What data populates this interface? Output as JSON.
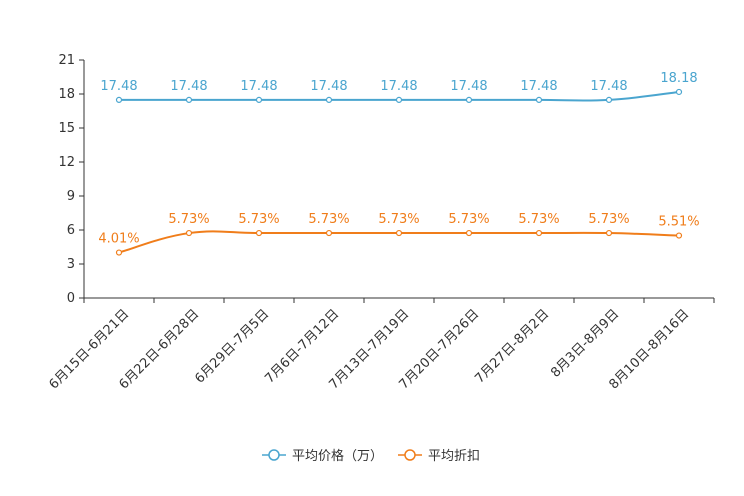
{
  "chart_data": {
    "type": "line",
    "categories": [
      "6月15日-6月21日",
      "6月22日-6月28日",
      "6月29日-7月5日",
      "7月6日-7月12日",
      "7月13日-7月19日",
      "7月20日-7月26日",
      "7月27日-8月2日",
      "8月3日-8月9日",
      "8月10日-8月16日"
    ],
    "ylim": [
      0,
      21
    ],
    "yticks": [
      0,
      3,
      6,
      9,
      12,
      15,
      18,
      21
    ],
    "series": [
      {
        "name": "平均价格（万）",
        "color": "#4aa5cf",
        "values": [
          17.48,
          17.48,
          17.48,
          17.48,
          17.48,
          17.48,
          17.48,
          17.48,
          18.18
        ],
        "labels": [
          "17.48",
          "17.48",
          "17.48",
          "17.48",
          "17.48",
          "17.48",
          "17.48",
          "17.48",
          "18.18"
        ]
      },
      {
        "name": "平均折扣",
        "color": "#f07d1a",
        "values": [
          4.01,
          5.73,
          5.73,
          5.73,
          5.73,
          5.73,
          5.73,
          5.73,
          5.51
        ],
        "labels": [
          "4.01%",
          "5.73%",
          "5.73%",
          "5.73%",
          "5.73%",
          "5.73%",
          "5.73%",
          "5.73%",
          "5.51%"
        ]
      }
    ],
    "legend_position": "bottom-center"
  }
}
